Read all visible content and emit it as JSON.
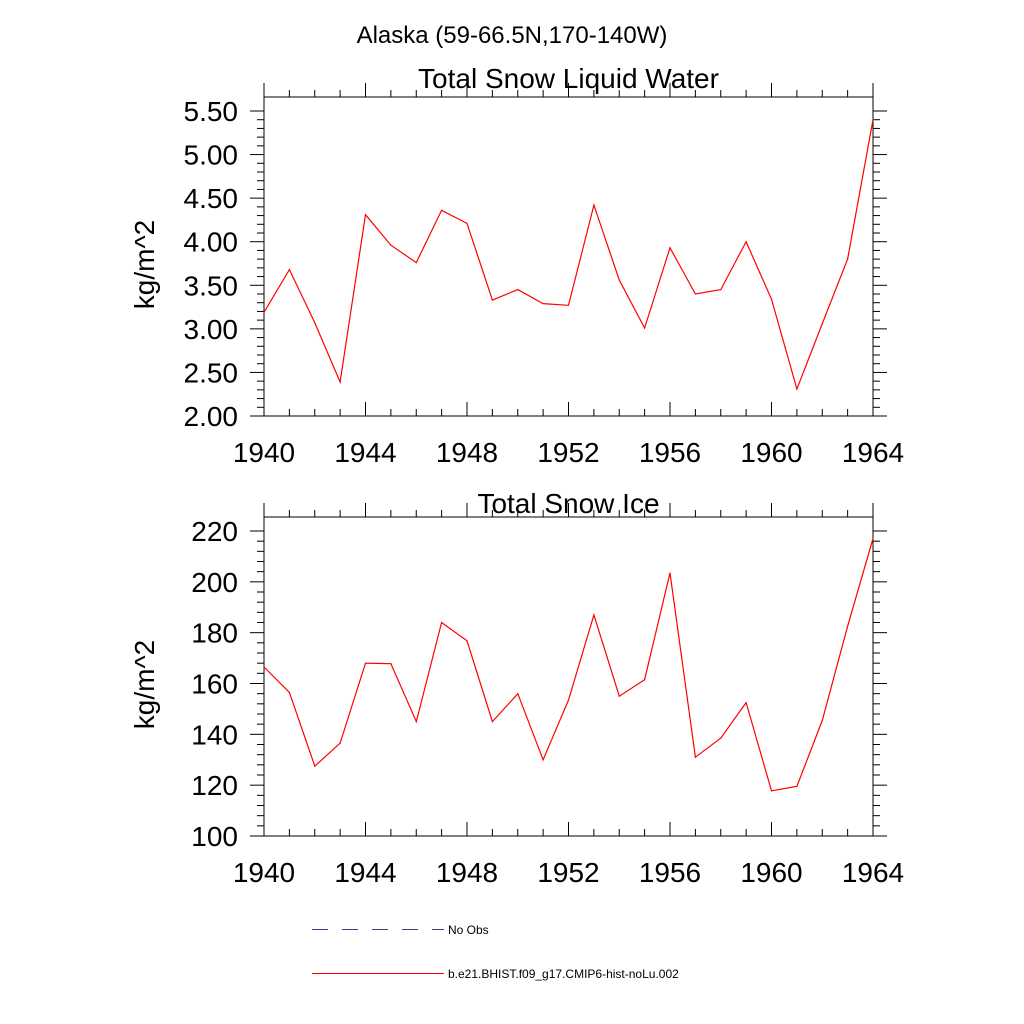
{
  "page_title": "Alaska (59-66.5N,170-140W)",
  "colors": {
    "model_line": "#ff0000",
    "obs_line": "#3b3b8f",
    "axis": "#000000"
  },
  "legend": {
    "position": "bottom",
    "entries": [
      {
        "label": "No Obs",
        "style": "dashed",
        "color": "#3b3b8f"
      },
      {
        "label": "b.e21.BHIST.f09_g17.CMIP6-hist-noLu.002",
        "style": "solid",
        "color": "#ff0000"
      }
    ]
  },
  "chart_data": [
    {
      "type": "line",
      "title": "Total Snow Liquid Water",
      "xlabel": "",
      "ylabel": "kg/m^2",
      "xlim": [
        1940,
        1964
      ],
      "ylim": [
        2.0,
        5.5
      ],
      "x_ticks": [
        "1940",
        "1944",
        "1948",
        "1952",
        "1956",
        "1960",
        "1964"
      ],
      "y_ticks": [
        "2.00",
        "2.50",
        "3.00",
        "3.50",
        "4.00",
        "4.50",
        "5.00",
        "5.50"
      ],
      "grid": false,
      "x": [
        1940,
        1941,
        1942,
        1943,
        1944,
        1945,
        1946,
        1947,
        1948,
        1949,
        1950,
        1951,
        1952,
        1953,
        1954,
        1955,
        1956,
        1957,
        1958,
        1959,
        1960,
        1961,
        1962,
        1963,
        1964
      ],
      "series": [
        {
          "name": "b.e21.BHIST.f09_g17.CMIP6-hist-noLu.002",
          "values": [
            3.19,
            3.68,
            3.07,
            2.39,
            4.31,
            3.96,
            3.76,
            4.36,
            4.21,
            3.33,
            3.45,
            3.29,
            3.27,
            4.42,
            3.56,
            3.01,
            3.93,
            3.4,
            3.45,
            4.0,
            3.34,
            2.31,
            3.06,
            3.8,
            5.4
          ]
        }
      ]
    },
    {
      "type": "line",
      "title": "Total Snow Ice",
      "xlabel": "",
      "ylabel": "kg/m^2",
      "xlim": [
        1940,
        1964
      ],
      "ylim": [
        100,
        220
      ],
      "x_ticks": [
        "1940",
        "1944",
        "1948",
        "1952",
        "1956",
        "1960",
        "1964"
      ],
      "y_ticks": [
        "100",
        "120",
        "140",
        "160",
        "180",
        "200",
        "220"
      ],
      "grid": false,
      "x": [
        1940,
        1941,
        1942,
        1943,
        1944,
        1945,
        1946,
        1947,
        1948,
        1949,
        1950,
        1951,
        1952,
        1953,
        1954,
        1955,
        1956,
        1957,
        1958,
        1959,
        1960,
        1961,
        1962,
        1963,
        1964
      ],
      "series": [
        {
          "name": "b.e21.BHIST.f09_g17.CMIP6-hist-noLu.002",
          "values": [
            166.5,
            156.5,
            127.5,
            136.5,
            168.0,
            167.8,
            145.0,
            184.0,
            176.8,
            145.0,
            156.0,
            130.0,
            153.5,
            187.0,
            155.0,
            161.5,
            203.5,
            131.0,
            138.5,
            152.5,
            117.8,
            119.5,
            145.5,
            182.5,
            217.0
          ]
        }
      ]
    }
  ]
}
